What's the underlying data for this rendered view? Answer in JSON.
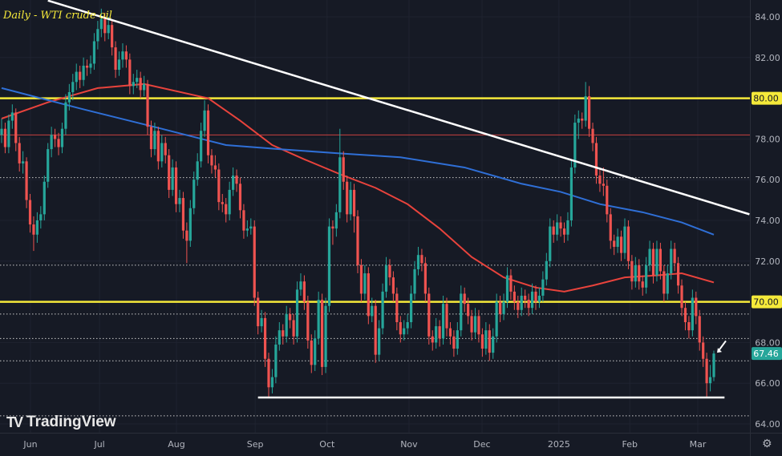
{
  "chart_data": {
    "type": "candlestick",
    "title": "Daily - WTI crude oil",
    "watermark": "TradingView",
    "ylim": [
      63.5,
      84.8
    ],
    "y_ticks": [
      "64.00",
      "66.00",
      "68.00",
      "70.00",
      "72.00",
      "74.00",
      "76.00",
      "78.00",
      "80.00",
      "82.00",
      "84.00"
    ],
    "x_ticks": [
      {
        "label": "Jun",
        "bar": 8.1
      },
      {
        "label": "Jul",
        "bar": 27.5
      },
      {
        "label": "Aug",
        "bar": 49.1
      },
      {
        "label": "Sep",
        "bar": 71.2
      },
      {
        "label": "Oct",
        "bar": 91.4
      },
      {
        "label": "Nov",
        "bar": 114.4
      },
      {
        "label": "Dec",
        "bar": 134.9
      },
      {
        "label": "2025",
        "bar": 156.5
      },
      {
        "label": "Feb",
        "bar": 176.4
      },
      {
        "label": "Mar",
        "bar": 195.5
      }
    ],
    "last_price": "67.46",
    "horizontal_levels": [
      {
        "value": 80.0,
        "label": "80.00",
        "color": "#f5e93a",
        "style": "solid"
      },
      {
        "value": 70.0,
        "label": "70.00",
        "color": "#f5e93a",
        "style": "solid"
      },
      {
        "value": 78.2,
        "color": "#c9413f",
        "style": "thin"
      }
    ],
    "support_line": {
      "value": 65.3,
      "from_bar": 72,
      "to_bar": 203,
      "color": "#ffffff"
    },
    "dotted_levels": [
      76.1,
      71.8,
      69.4,
      68.2,
      67.1,
      64.4
    ],
    "trendline": {
      "points": [
        [
          13,
          84.8
        ],
        [
          210,
          74.3
        ]
      ],
      "color": "#ffffff"
    },
    "moving_averages": [
      {
        "color": "#e8433c",
        "points": [
          [
            0,
            79.0
          ],
          [
            13,
            79.8
          ],
          [
            27,
            80.5
          ],
          [
            40,
            80.7
          ],
          [
            58,
            80.0
          ],
          [
            67,
            78.9
          ],
          [
            76,
            77.7
          ],
          [
            85,
            77.0
          ],
          [
            96,
            76.2
          ],
          [
            105,
            75.6
          ],
          [
            114,
            74.8
          ],
          [
            123,
            73.6
          ],
          [
            132,
            72.2
          ],
          [
            141,
            71.2
          ],
          [
            150,
            70.7
          ],
          [
            158,
            70.5
          ],
          [
            166,
            70.8
          ],
          [
            175,
            71.2
          ],
          [
            184,
            71.3
          ],
          [
            191,
            71.4
          ],
          [
            200,
            70.95
          ]
        ]
      },
      {
        "color": "#2f6fd6",
        "points": [
          [
            0,
            80.5
          ],
          [
            22,
            79.5
          ],
          [
            45,
            78.5
          ],
          [
            63,
            77.7
          ],
          [
            78,
            77.5
          ],
          [
            94,
            77.3
          ],
          [
            112,
            77.1
          ],
          [
            130,
            76.6
          ],
          [
            146,
            75.8
          ],
          [
            157,
            75.4
          ],
          [
            168,
            74.8
          ],
          [
            180,
            74.4
          ],
          [
            191,
            73.9
          ],
          [
            200,
            73.3
          ]
        ]
      }
    ],
    "colors": {
      "up": "#26a69a",
      "down": "#ef5350",
      "background": "#161a25",
      "level_label": "#f5e93a",
      "last_price": "#26a69a"
    },
    "candles": [
      [
        78.2,
        79.0,
        77.8,
        78.5
      ],
      [
        78.5,
        78.8,
        77.3,
        77.6
      ],
      [
        77.6,
        79.2,
        77.3,
        78.9
      ],
      [
        78.9,
        79.7,
        78.5,
        79.3
      ],
      [
        79.3,
        79.5,
        77.4,
        77.8
      ],
      [
        77.8,
        78.1,
        76.4,
        76.8
      ],
      [
        76.8,
        77.4,
        76.3,
        76.9
      ],
      [
        76.9,
        77.1,
        74.6,
        75.0
      ],
      [
        75.0,
        75.3,
        73.4,
        73.8
      ],
      [
        73.8,
        74.2,
        72.5,
        73.3
      ],
      [
        73.3,
        74.4,
        72.9,
        74.0
      ],
      [
        74.0,
        74.7,
        73.6,
        74.3
      ],
      [
        74.3,
        76.2,
        74.0,
        75.9
      ],
      [
        75.9,
        77.8,
        75.6,
        77.5
      ],
      [
        77.5,
        78.6,
        77.1,
        78.2
      ],
      [
        78.2,
        78.5,
        77.6,
        78.0
      ],
      [
        78.0,
        78.3,
        77.2,
        77.6
      ],
      [
        77.6,
        78.8,
        77.3,
        78.5
      ],
      [
        78.5,
        80.2,
        78.2,
        79.8
      ],
      [
        79.8,
        80.7,
        79.4,
        80.3
      ],
      [
        80.3,
        81.2,
        79.9,
        80.8
      ],
      [
        80.8,
        81.7,
        80.4,
        81.3
      ],
      [
        81.3,
        81.6,
        80.5,
        80.9
      ],
      [
        80.9,
        82.0,
        80.6,
        81.6
      ],
      [
        81.6,
        81.9,
        81.1,
        81.5
      ],
      [
        81.5,
        82.1,
        81.2,
        81.7
      ],
      [
        81.7,
        83.2,
        81.4,
        82.8
      ],
      [
        82.8,
        83.8,
        82.4,
        83.4
      ],
      [
        83.4,
        84.4,
        83.0,
        83.9
      ],
      [
        83.9,
        84.2,
        82.8,
        83.2
      ],
      [
        83.2,
        84.0,
        82.9,
        83.6
      ],
      [
        83.6,
        83.8,
        82.1,
        82.5
      ],
      [
        82.5,
        82.8,
        81.0,
        81.4
      ],
      [
        81.4,
        82.3,
        81.1,
        81.9
      ],
      [
        81.9,
        82.7,
        81.5,
        82.3
      ],
      [
        82.3,
        82.6,
        81.5,
        81.9
      ],
      [
        81.9,
        82.2,
        80.2,
        80.6
      ],
      [
        80.6,
        81.2,
        80.2,
        80.8
      ],
      [
        80.8,
        81.4,
        80.5,
        81.0
      ],
      [
        81.0,
        81.3,
        80.0,
        80.4
      ],
      [
        80.4,
        81.1,
        80.1,
        80.7
      ],
      [
        80.7,
        80.9,
        78.2,
        78.6
      ],
      [
        78.6,
        78.9,
        77.1,
        77.5
      ],
      [
        77.5,
        78.8,
        77.2,
        78.4
      ],
      [
        78.4,
        78.6,
        76.5,
        76.9
      ],
      [
        76.9,
        78.2,
        76.6,
        77.8
      ],
      [
        77.8,
        78.1,
        76.8,
        77.2
      ],
      [
        77.2,
        77.5,
        75.1,
        75.5
      ],
      [
        75.5,
        77.0,
        75.2,
        76.6
      ],
      [
        76.6,
        76.9,
        74.4,
        74.8
      ],
      [
        74.8,
        75.5,
        74.4,
        75.1
      ],
      [
        75.1,
        75.4,
        73.1,
        73.5
      ],
      [
        73.5,
        73.9,
        71.9,
        73.0
      ],
      [
        73.0,
        75.0,
        72.7,
        74.6
      ],
      [
        74.6,
        76.4,
        74.3,
        76.0
      ],
      [
        76.0,
        77.3,
        75.7,
        76.9
      ],
      [
        76.9,
        78.8,
        76.6,
        78.4
      ],
      [
        78.4,
        79.9,
        78.1,
        79.4
      ],
      [
        79.4,
        79.7,
        76.8,
        77.2
      ],
      [
        77.2,
        77.5,
        76.3,
        76.7
      ],
      [
        76.7,
        77.2,
        76.1,
        76.5
      ],
      [
        76.5,
        76.8,
        74.5,
        74.9
      ],
      [
        74.9,
        75.3,
        74.4,
        74.8
      ],
      [
        74.8,
        75.1,
        73.9,
        74.3
      ],
      [
        74.3,
        75.9,
        74.0,
        75.5
      ],
      [
        75.5,
        76.6,
        75.2,
        76.2
      ],
      [
        76.2,
        76.5,
        75.4,
        75.8
      ],
      [
        75.8,
        76.1,
        74.1,
        74.5
      ],
      [
        74.5,
        74.8,
        73.1,
        73.5
      ],
      [
        73.5,
        74.0,
        73.2,
        73.6
      ],
      [
        73.6,
        74.1,
        73.3,
        73.7
      ],
      [
        73.7,
        74.0,
        69.8,
        70.2
      ],
      [
        70.2,
        70.5,
        68.4,
        68.8
      ],
      [
        68.8,
        69.6,
        68.5,
        69.2
      ],
      [
        69.2,
        69.5,
        66.8,
        67.2
      ],
      [
        67.2,
        67.5,
        65.3,
        65.8
      ],
      [
        65.8,
        66.7,
        65.5,
        66.3
      ],
      [
        66.3,
        68.3,
        66.0,
        67.9
      ],
      [
        67.9,
        69.0,
        67.6,
        68.6
      ],
      [
        68.6,
        68.9,
        67.9,
        68.3
      ],
      [
        68.3,
        69.8,
        68.0,
        69.4
      ],
      [
        69.4,
        69.7,
        68.7,
        69.1
      ],
      [
        69.1,
        69.4,
        67.9,
        68.3
      ],
      [
        68.3,
        71.0,
        68.0,
        70.6
      ],
      [
        70.6,
        71.4,
        70.3,
        71.0
      ],
      [
        71.0,
        71.3,
        69.6,
        70.0
      ],
      [
        70.0,
        70.3,
        67.7,
        68.1
      ],
      [
        68.1,
        68.4,
        66.5,
        66.9
      ],
      [
        66.9,
        68.6,
        66.6,
        68.2
      ],
      [
        68.2,
        70.5,
        67.9,
        70.1
      ],
      [
        70.1,
        70.4,
        66.4,
        66.8
      ],
      [
        66.8,
        70.2,
        66.5,
        69.8
      ],
      [
        69.8,
        74.1,
        69.5,
        73.7
      ],
      [
        73.7,
        74.0,
        72.8,
        73.6
      ],
      [
        73.6,
        74.8,
        73.2,
        74.4
      ],
      [
        74.4,
        78.5,
        74.1,
        77.1
      ],
      [
        77.1,
        77.4,
        75.5,
        75.9
      ],
      [
        75.9,
        76.2,
        73.9,
        74.3
      ],
      [
        74.3,
        75.9,
        74.0,
        75.5
      ],
      [
        75.5,
        75.8,
        73.4,
        74.2
      ],
      [
        74.2,
        74.5,
        71.4,
        71.8
      ],
      [
        71.8,
        72.1,
        70.0,
        70.4
      ],
      [
        70.4,
        71.8,
        70.1,
        71.4
      ],
      [
        71.4,
        71.7,
        68.9,
        69.3
      ],
      [
        69.3,
        70.2,
        69.0,
        69.8
      ],
      [
        69.8,
        70.1,
        67.0,
        67.4
      ],
      [
        67.4,
        69.1,
        67.1,
        68.7
      ],
      [
        68.7,
        70.9,
        68.4,
        70.5
      ],
      [
        70.5,
        72.2,
        70.2,
        71.8
      ],
      [
        71.8,
        72.1,
        70.8,
        71.2
      ],
      [
        71.2,
        71.5,
        70.0,
        70.4
      ],
      [
        70.4,
        70.7,
        68.6,
        69.0
      ],
      [
        69.0,
        69.3,
        68.0,
        68.4
      ],
      [
        68.4,
        69.1,
        68.1,
        68.7
      ],
      [
        68.7,
        69.4,
        68.4,
        69.0
      ],
      [
        69.0,
        70.8,
        68.7,
        70.4
      ],
      [
        70.4,
        72.0,
        70.1,
        71.6
      ],
      [
        71.6,
        72.7,
        71.3,
        72.3
      ],
      [
        72.3,
        72.6,
        71.5,
        71.9
      ],
      [
        71.9,
        72.2,
        70.0,
        70.4
      ],
      [
        70.4,
        70.7,
        67.9,
        68.3
      ],
      [
        68.3,
        68.6,
        67.6,
        68.0
      ],
      [
        68.0,
        69.2,
        67.7,
        68.8
      ],
      [
        68.8,
        69.1,
        67.8,
        68.2
      ],
      [
        68.2,
        70.3,
        67.9,
        69.9
      ],
      [
        69.9,
        70.2,
        68.3,
        68.7
      ],
      [
        68.7,
        69.0,
        67.9,
        68.3
      ],
      [
        68.3,
        68.6,
        67.3,
        67.7
      ],
      [
        67.7,
        69.0,
        67.4,
        68.6
      ],
      [
        68.6,
        70.8,
        68.3,
        70.4
      ],
      [
        70.4,
        70.7,
        69.5,
        69.9
      ],
      [
        69.9,
        70.2,
        68.9,
        69.3
      ],
      [
        69.3,
        69.6,
        68.1,
        68.5
      ],
      [
        68.5,
        69.7,
        68.2,
        69.3
      ],
      [
        69.3,
        69.6,
        68.0,
        68.4
      ],
      [
        68.4,
        68.7,
        67.3,
        67.7
      ],
      [
        67.7,
        69.0,
        67.4,
        68.6
      ],
      [
        68.6,
        68.9,
        67.1,
        67.5
      ],
      [
        67.5,
        68.7,
        67.2,
        68.3
      ],
      [
        68.3,
        70.4,
        68.0,
        70.0
      ],
      [
        70.0,
        70.3,
        69.0,
        69.4
      ],
      [
        69.4,
        70.4,
        69.1,
        70.0
      ],
      [
        70.0,
        71.7,
        69.7,
        71.3
      ],
      [
        71.3,
        71.6,
        70.1,
        70.5
      ],
      [
        70.5,
        70.8,
        69.6,
        70.0
      ],
      [
        70.0,
        70.3,
        69.2,
        69.6
      ],
      [
        69.6,
        70.7,
        69.3,
        70.3
      ],
      [
        70.3,
        70.6,
        69.7,
        70.1
      ],
      [
        70.1,
        70.4,
        69.3,
        69.7
      ],
      [
        69.7,
        70.9,
        69.4,
        70.5
      ],
      [
        70.5,
        70.8,
        69.6,
        70.0
      ],
      [
        70.0,
        70.7,
        69.7,
        70.3
      ],
      [
        70.3,
        71.5,
        70.0,
        71.1
      ],
      [
        71.1,
        72.4,
        70.8,
        72.0
      ],
      [
        72.0,
        74.1,
        71.7,
        73.7
      ],
      [
        73.7,
        74.0,
        72.9,
        73.3
      ],
      [
        73.3,
        74.3,
        73.0,
        73.9
      ],
      [
        73.9,
        74.2,
        73.2,
        73.6
      ],
      [
        73.6,
        73.9,
        72.9,
        73.3
      ],
      [
        73.3,
        74.4,
        73.0,
        74.0
      ],
      [
        74.0,
        77.0,
        73.7,
        76.6
      ],
      [
        76.6,
        79.2,
        76.3,
        78.8
      ],
      [
        78.8,
        79.4,
        78.0,
        79.0
      ],
      [
        79.0,
        79.3,
        78.5,
        78.9
      ],
      [
        78.9,
        80.8,
        78.6,
        80.1
      ],
      [
        80.1,
        80.6,
        78.1,
        78.5
      ],
      [
        78.5,
        78.8,
        77.4,
        77.8
      ],
      [
        77.8,
        78.1,
        75.8,
        76.2
      ],
      [
        76.2,
        76.5,
        75.4,
        75.8
      ],
      [
        75.8,
        76.6,
        75.2,
        75.7
      ],
      [
        75.7,
        76.0,
        73.9,
        74.3
      ],
      [
        74.3,
        74.6,
        72.6,
        73.0
      ],
      [
        73.0,
        73.3,
        72.3,
        72.7
      ],
      [
        72.7,
        73.6,
        72.4,
        73.2
      ],
      [
        73.2,
        73.5,
        72.0,
        72.4
      ],
      [
        72.4,
        74.1,
        72.1,
        73.7
      ],
      [
        73.7,
        74.0,
        71.6,
        72.0
      ],
      [
        72.0,
        72.3,
        70.6,
        71.0
      ],
      [
        71.0,
        72.2,
        70.7,
        71.8
      ],
      [
        71.8,
        72.1,
        70.6,
        71.0
      ],
      [
        71.0,
        71.3,
        70.3,
        70.7
      ],
      [
        70.7,
        72.2,
        70.4,
        71.8
      ],
      [
        71.8,
        73.0,
        71.5,
        72.6
      ],
      [
        72.6,
        72.9,
        70.9,
        71.3
      ],
      [
        71.3,
        73.0,
        71.0,
        72.6
      ],
      [
        72.6,
        72.9,
        71.1,
        71.5
      ],
      [
        71.5,
        71.8,
        70.0,
        70.4
      ],
      [
        70.4,
        71.8,
        70.1,
        71.4
      ],
      [
        71.4,
        73.0,
        71.1,
        72.6
      ],
      [
        72.6,
        72.9,
        71.5,
        71.9
      ],
      [
        71.9,
        72.2,
        70.4,
        70.8
      ],
      [
        70.8,
        71.1,
        69.3,
        69.7
      ],
      [
        69.7,
        70.0,
        68.6,
        69.0
      ],
      [
        69.0,
        69.3,
        68.2,
        68.6
      ],
      [
        68.6,
        70.6,
        68.3,
        70.2
      ],
      [
        70.2,
        70.5,
        68.9,
        69.3
      ],
      [
        69.3,
        69.6,
        67.6,
        68.0
      ],
      [
        68.0,
        68.3,
        66.8,
        67.2
      ],
      [
        67.2,
        67.5,
        65.3,
        66.0
      ],
      [
        66.0,
        66.9,
        65.6,
        66.3
      ],
      [
        66.3,
        67.6,
        66.1,
        67.46
      ]
    ]
  },
  "icons": {
    "settings": "gear-icon",
    "annotation": "arrow-icon"
  }
}
